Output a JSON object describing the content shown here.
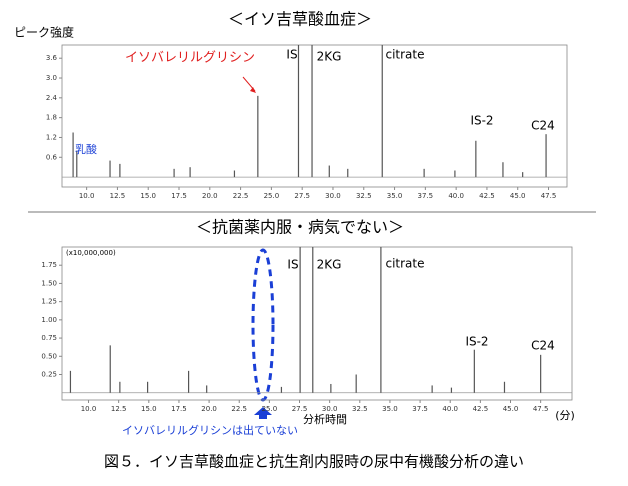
{
  "caption": "図５．イソ吉草酸血症と抗生剤内服時の尿中有機酸分析の違い",
  "chart_data": [
    {
      "type": "spike",
      "title": "＜イソ吉草酸血症＞",
      "y_label": "ピーク強度",
      "color": "#555555",
      "x": [
        8.9,
        9.2,
        11.9,
        12.7,
        17.1,
        18.4,
        22.0,
        23.9,
        27.2,
        28.3,
        29.7,
        31.2,
        34.0,
        37.4,
        39.9,
        41.6,
        43.8,
        45.4,
        47.3
      ],
      "values": [
        1.35,
        0.8,
        0.5,
        0.4,
        0.25,
        0.3,
        0.2,
        2.46,
        4.0,
        4.0,
        0.35,
        0.25,
        4.0,
        0.25,
        0.2,
        1.1,
        0.45,
        0.15,
        1.3
      ],
      "xlim": [
        8.0,
        49.0
      ],
      "ylim": [
        -0.3,
        4.0
      ],
      "xticks": [
        {
          "value": 10,
          "label": "10.0"
        },
        12.5,
        {
          "value": 15,
          "label": "15.0"
        },
        17.5,
        {
          "value": 20,
          "label": "20.0"
        },
        22.5,
        {
          "value": 25,
          "label": "25.0"
        },
        27.5,
        {
          "value": 30,
          "label": "30.0"
        },
        32.5,
        {
          "value": 35,
          "label": "35.0"
        },
        37.5,
        {
          "value": 40,
          "label": "40.0"
        },
        42.5,
        {
          "value": 45,
          "label": "45.0"
        },
        47.5
      ],
      "yticks": [
        0.6,
        1.2,
        1.8,
        2.4,
        {
          "value": 3,
          "label": "3.0"
        },
        3.6
      ],
      "annotations": [
        "イソバレリルグリシン",
        "IS",
        "2KG",
        "citrate",
        "IS-2",
        "C24",
        "乳酸"
      ]
    },
    {
      "type": "spike",
      "title": "＜抗菌薬内服・病気でない＞",
      "y_label": "(x10,000,000)",
      "x_label": "分析時間",
      "x_unit": "(分)",
      "color": "#555555",
      "x": [
        8.5,
        11.8,
        12.6,
        14.9,
        18.3,
        19.8,
        26.0,
        27.55,
        28.6,
        30.1,
        32.2,
        34.25,
        38.5,
        40.1,
        42.0,
        44.5,
        47.5
      ],
      "values": [
        0.3,
        0.65,
        0.15,
        0.15,
        0.3,
        0.1,
        0.08,
        2.0,
        2.0,
        0.12,
        0.25,
        2.0,
        0.1,
        0.07,
        0.59,
        0.15,
        0.52
      ],
      "xlim": [
        7.8,
        50.1
      ],
      "ylim": [
        -0.1,
        2.0
      ],
      "xticks": [
        {
          "value": 10,
          "label": "10.0"
        },
        12.5,
        {
          "value": 15,
          "label": "15.0"
        },
        17.5,
        {
          "value": 20,
          "label": "20.0"
        },
        22.5,
        {
          "value": 25,
          "label": "25.0"
        },
        27.5,
        {
          "value": 30,
          "label": "30.0"
        },
        32.5,
        {
          "value": 35,
          "label": "35.0"
        },
        37.5,
        {
          "value": 40,
          "label": "40.0"
        },
        42.5,
        {
          "value": 45,
          "label": "45.0"
        },
        47.5
      ],
      "yticks": [
        0.25,
        {
          "value": 0.5,
          "label": "0.50"
        },
        0.75,
        {
          "value": 1,
          "label": "1.00"
        },
        1.25,
        {
          "value": 1.5,
          "label": "1.50"
        },
        1.75
      ],
      "annotations": [
        "IS",
        "2KG",
        "citrate",
        "IS-2",
        "C24",
        "イソバレリルグリシンは出ていない"
      ]
    }
  ]
}
